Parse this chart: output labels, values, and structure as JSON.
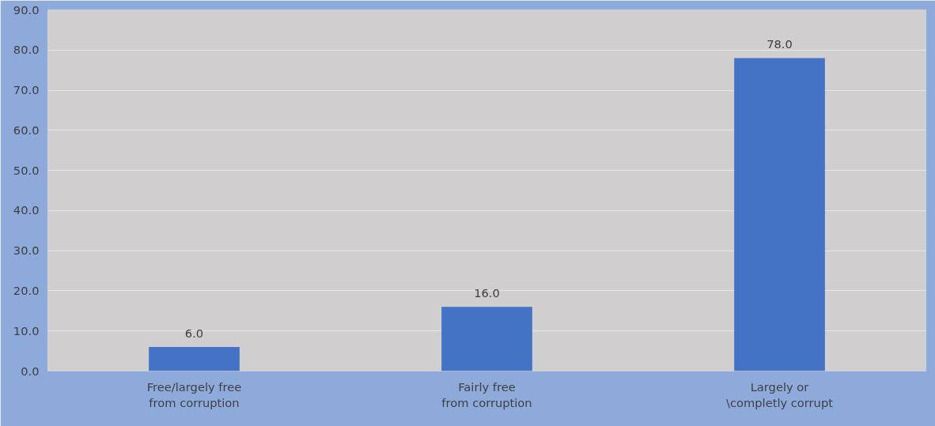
{
  "chart_data": {
    "type": "bar",
    "categories": [
      "Free/largely free\nfrom corruption",
      "Fairly free\nfrom corruption",
      "Largely or\n\\completly corrupt"
    ],
    "values": [
      6.0,
      16.0,
      78.0
    ],
    "color": "#4472c4",
    "value_labels": [
      "6.0",
      "16.0",
      "78.0"
    ],
    "ylim": [
      0,
      90
    ],
    "yticks": [
      {
        "value": 0,
        "label": "0.0"
      },
      {
        "value": 10,
        "label": "10.0"
      },
      {
        "value": 20,
        "label": "20.0"
      },
      {
        "value": 30,
        "label": "30.0"
      },
      {
        "value": 40,
        "label": "40.0"
      },
      {
        "value": 50,
        "label": "50.0"
      },
      {
        "value": 60,
        "label": "60.0"
      },
      {
        "value": 70,
        "label": "70.0"
      },
      {
        "value": 80,
        "label": "80.0"
      },
      {
        "value": 90,
        "label": "90.0"
      }
    ],
    "grid": "y"
  }
}
